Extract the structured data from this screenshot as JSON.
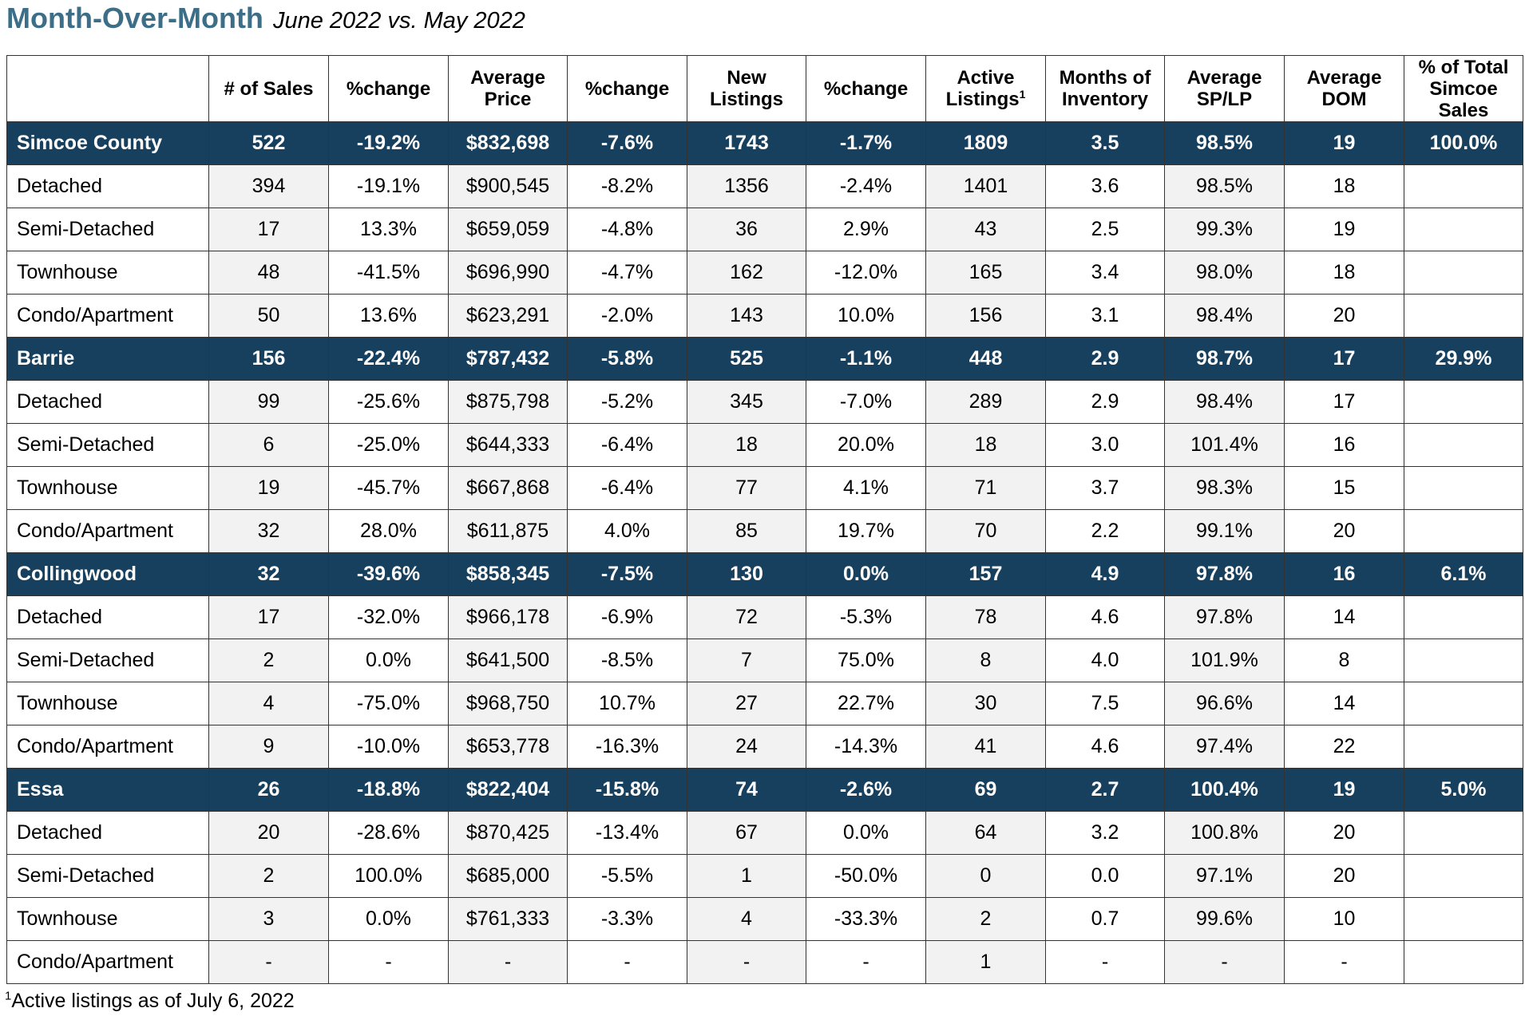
{
  "title": {
    "main": "Month-Over-Month",
    "sub": "June 2022 vs. May 2022"
  },
  "table": {
    "headers": [
      "",
      "# of Sales",
      "%change",
      "Average Price",
      "%change",
      "New Listings",
      "%change",
      "Active Listings",
      "Months of Inventory",
      "Average SP/LP",
      "Average DOM",
      "% of Total Simcoe Sales"
    ],
    "header_footnote_mark": "1",
    "rows": [
      {
        "type": "region",
        "cells": [
          "Simcoe County",
          "522",
          "-19.2%",
          "$832,698",
          "-7.6%",
          "1743",
          "-1.7%",
          "1809",
          "3.5",
          "98.5%",
          "19",
          "100.0%"
        ]
      },
      {
        "type": "sub",
        "cells": [
          "Detached",
          "394",
          "-19.1%",
          "$900,545",
          "-8.2%",
          "1356",
          "-2.4%",
          "1401",
          "3.6",
          "98.5%",
          "18",
          ""
        ]
      },
      {
        "type": "sub",
        "cells": [
          "Semi-Detached",
          "17",
          "13.3%",
          "$659,059",
          "-4.8%",
          "36",
          "2.9%",
          "43",
          "2.5",
          "99.3%",
          "19",
          ""
        ]
      },
      {
        "type": "sub",
        "cells": [
          "Townhouse",
          "48",
          "-41.5%",
          "$696,990",
          "-4.7%",
          "162",
          "-12.0%",
          "165",
          "3.4",
          "98.0%",
          "18",
          ""
        ]
      },
      {
        "type": "sub",
        "cells": [
          "Condo/Apartment",
          "50",
          "13.6%",
          "$623,291",
          "-2.0%",
          "143",
          "10.0%",
          "156",
          "3.1",
          "98.4%",
          "20",
          ""
        ]
      },
      {
        "type": "region",
        "cells": [
          "Barrie",
          "156",
          "-22.4%",
          "$787,432",
          "-5.8%",
          "525",
          "-1.1%",
          "448",
          "2.9",
          "98.7%",
          "17",
          "29.9%"
        ]
      },
      {
        "type": "sub",
        "cells": [
          "Detached",
          "99",
          "-25.6%",
          "$875,798",
          "-5.2%",
          "345",
          "-7.0%",
          "289",
          "2.9",
          "98.4%",
          "17",
          ""
        ]
      },
      {
        "type": "sub",
        "cells": [
          "Semi-Detached",
          "6",
          "-25.0%",
          "$644,333",
          "-6.4%",
          "18",
          "20.0%",
          "18",
          "3.0",
          "101.4%",
          "16",
          ""
        ]
      },
      {
        "type": "sub",
        "cells": [
          "Townhouse",
          "19",
          "-45.7%",
          "$667,868",
          "-6.4%",
          "77",
          "4.1%",
          "71",
          "3.7",
          "98.3%",
          "15",
          ""
        ]
      },
      {
        "type": "sub",
        "cells": [
          "Condo/Apartment",
          "32",
          "28.0%",
          "$611,875",
          "4.0%",
          "85",
          "19.7%",
          "70",
          "2.2",
          "99.1%",
          "20",
          ""
        ]
      },
      {
        "type": "region",
        "cells": [
          "Collingwood",
          "32",
          "-39.6%",
          "$858,345",
          "-7.5%",
          "130",
          "0.0%",
          "157",
          "4.9",
          "97.8%",
          "16",
          "6.1%"
        ]
      },
      {
        "type": "sub",
        "cells": [
          "Detached",
          "17",
          "-32.0%",
          "$966,178",
          "-6.9%",
          "72",
          "-5.3%",
          "78",
          "4.6",
          "97.8%",
          "14",
          ""
        ]
      },
      {
        "type": "sub",
        "cells": [
          "Semi-Detached",
          "2",
          "0.0%",
          "$641,500",
          "-8.5%",
          "7",
          "75.0%",
          "8",
          "4.0",
          "101.9%",
          "8",
          ""
        ]
      },
      {
        "type": "sub",
        "cells": [
          "Townhouse",
          "4",
          "-75.0%",
          "$968,750",
          "10.7%",
          "27",
          "22.7%",
          "30",
          "7.5",
          "96.6%",
          "14",
          ""
        ]
      },
      {
        "type": "sub",
        "cells": [
          "Condo/Apartment",
          "9",
          "-10.0%",
          "$653,778",
          "-16.3%",
          "24",
          "-14.3%",
          "41",
          "4.6",
          "97.4%",
          "22",
          ""
        ]
      },
      {
        "type": "region",
        "cells": [
          "Essa",
          "26",
          "-18.8%",
          "$822,404",
          "-15.8%",
          "74",
          "-2.6%",
          "69",
          "2.7",
          "100.4%",
          "19",
          "5.0%"
        ]
      },
      {
        "type": "sub",
        "cells": [
          "Detached",
          "20",
          "-28.6%",
          "$870,425",
          "-13.4%",
          "67",
          "0.0%",
          "64",
          "3.2",
          "100.8%",
          "20",
          ""
        ]
      },
      {
        "type": "sub",
        "cells": [
          "Semi-Detached",
          "2",
          "100.0%",
          "$685,000",
          "-5.5%",
          "1",
          "-50.0%",
          "0",
          "0.0",
          "97.1%",
          "20",
          ""
        ]
      },
      {
        "type": "sub",
        "cells": [
          "Townhouse",
          "3",
          "0.0%",
          "$761,333",
          "-3.3%",
          "4",
          "-33.3%",
          "2",
          "0.7",
          "99.6%",
          "10",
          ""
        ]
      },
      {
        "type": "sub",
        "cells": [
          "Condo/Apartment",
          "-",
          "-",
          "-",
          "-",
          "-",
          "-",
          "1",
          "-",
          "-",
          "-",
          ""
        ]
      }
    ]
  },
  "footnote": {
    "mark": "1",
    "text": "Active listings as of July 6, 2022"
  }
}
